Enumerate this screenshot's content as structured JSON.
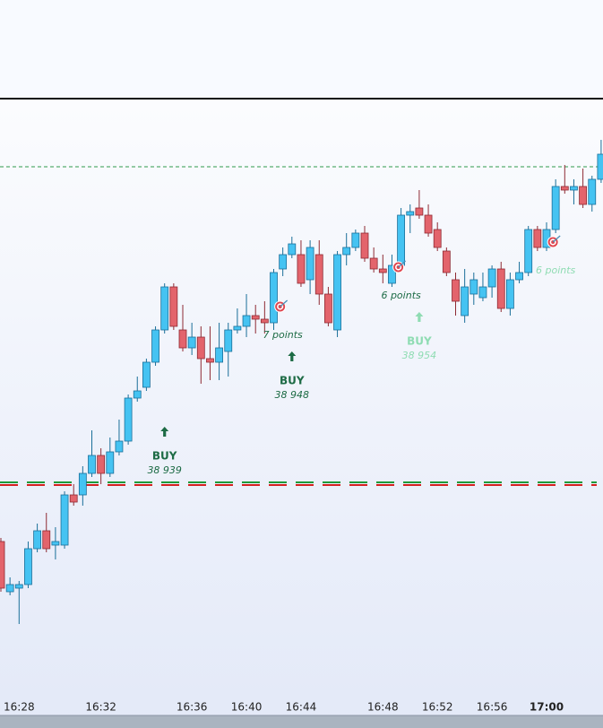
{
  "chart_data": {
    "type": "candlestick",
    "categories": [
      null,
      null,
      "16:28",
      null,
      null,
      null,
      null,
      null,
      null,
      null,
      null,
      "16:32",
      null,
      null,
      null,
      null,
      null,
      null,
      null,
      null,
      null,
      "16:36",
      null,
      null,
      null,
      null,
      null,
      "16:40",
      null,
      null,
      null,
      null,
      null,
      "16:44",
      null,
      null,
      null,
      null,
      null,
      null,
      null,
      null,
      "16:48",
      null,
      null,
      null,
      null,
      null,
      "16:52",
      null,
      null,
      null,
      null,
      null,
      "16:56",
      null,
      null,
      null,
      null,
      null,
      "17:00",
      null,
      null,
      null,
      null,
      null,
      null
    ],
    "highlight_category": "17:00",
    "open": [
      38880,
      38866,
      38867,
      38868,
      38878,
      38883,
      38879,
      38879,
      38893,
      38893,
      38899,
      38904,
      38899,
      38905,
      38908,
      38920,
      38923,
      38930,
      38939,
      38951,
      38939,
      38934,
      38937,
      38931,
      38930,
      38933,
      38939,
      38940,
      38943,
      38942,
      38941,
      38956,
      38960,
      38960,
      38953,
      38960,
      38949,
      38939,
      38960,
      38962,
      38966,
      38959,
      38956,
      38952,
      38957,
      38971,
      38973,
      38971,
      38967,
      38961,
      38953,
      38943,
      38949,
      38948,
      38951,
      38956,
      38945,
      38953,
      38955,
      38967,
      38962,
      38967,
      38979,
      38978,
      38979,
      38974,
      38981
    ],
    "high": [
      38881,
      38870,
      38869,
      38880,
      38885,
      38888,
      38884,
      38894,
      38896,
      38901,
      38911,
      38906,
      38909,
      38914,
      38921,
      38926,
      38931,
      38940,
      38952,
      38952,
      38946,
      38941,
      38940,
      38940,
      38941,
      38941,
      38945,
      38949,
      38946,
      38947,
      38956,
      38962,
      38965,
      38964,
      38964,
      38964,
      38951,
      38961,
      38966,
      38967,
      38968,
      38962,
      38960,
      38960,
      38973,
      38974,
      38978,
      38974,
      38969,
      38962,
      38955,
      38956,
      38955,
      38955,
      38957,
      38958,
      38955,
      38958,
      38968,
      38968,
      38969,
      38981,
      38985,
      38981,
      38984,
      38982,
      38992
    ],
    "low": [
      38866,
      38865,
      38857,
      38867,
      38877,
      38877,
      38875,
      38878,
      38890,
      38890,
      38898,
      38896,
      38898,
      38904,
      38907,
      38919,
      38922,
      38929,
      38938,
      38939,
      38933,
      38932,
      38924,
      38925,
      38925,
      38926,
      38938,
      38937,
      38938,
      38938,
      38939,
      38954,
      38959,
      38951,
      38949,
      38946,
      38940,
      38937,
      38957,
      38961,
      38958,
      38955,
      38952,
      38951,
      38956,
      38966,
      38970,
      38965,
      38961,
      38954,
      38943,
      38941,
      38946,
      38947,
      38948,
      38944,
      38943,
      38952,
      38954,
      38961,
      38961,
      38966,
      38977,
      38974,
      38973,
      38972,
      38980
    ],
    "close": [
      38867,
      38868,
      38868,
      38878,
      38883,
      38878,
      38880,
      38893,
      38891,
      38899,
      38904,
      38899,
      38905,
      38908,
      38920,
      38922,
      38930,
      38939,
      38951,
      38940,
      38934,
      38937,
      38931,
      38930,
      38934,
      38939,
      38940,
      38943,
      38942,
      38941,
      38955,
      38960,
      38963,
      38952,
      38962,
      38949,
      38941,
      38960,
      38962,
      38966,
      38959,
      38956,
      38955,
      38957,
      38971,
      38972,
      38971,
      38966,
      38962,
      38955,
      38947,
      38951,
      38953,
      38951,
      38956,
      38945,
      38953,
      38955,
      38967,
      38962,
      38967,
      38979,
      38978,
      38979,
      38974,
      38981,
      38988
    ],
    "up_color": "#45c3f2",
    "down_color": "#e3646c",
    "ylim": [
      38836.5,
      39003.5
    ],
    "levels": [
      {
        "price": 38984.5,
        "color": "#2f9a4c",
        "style": "thin"
      },
      {
        "price": 38896.5,
        "color": "#1f9a3a",
        "style": "thick"
      },
      {
        "price": 38895.75,
        "color": "#d42020",
        "style": "thick"
      }
    ],
    "signals": [
      {
        "label": "BUY",
        "index": 18,
        "price": {
          "value": 38939,
          "label": "38 939"
        },
        "color": "#1d6b45"
      },
      {
        "label": "BUY",
        "index": 32,
        "price": {
          "value": 38948,
          "label": "38 948"
        },
        "color": "#1d6b45"
      },
      {
        "label": "BUY",
        "index": 46,
        "price": {
          "value": 38954,
          "label": "38 954"
        },
        "color": "#8fdcb3"
      }
    ],
    "targets": [
      {
        "label": "7 points",
        "index": 31,
        "price": 38945.5,
        "color": "#1d6b45"
      },
      {
        "label": "6 points",
        "index": 44,
        "price": 38956.5,
        "color": "#1d6b45"
      },
      {
        "label": "6 points",
        "index": 61,
        "price": 38963.5,
        "color": "#8fdcb3"
      }
    ]
  }
}
